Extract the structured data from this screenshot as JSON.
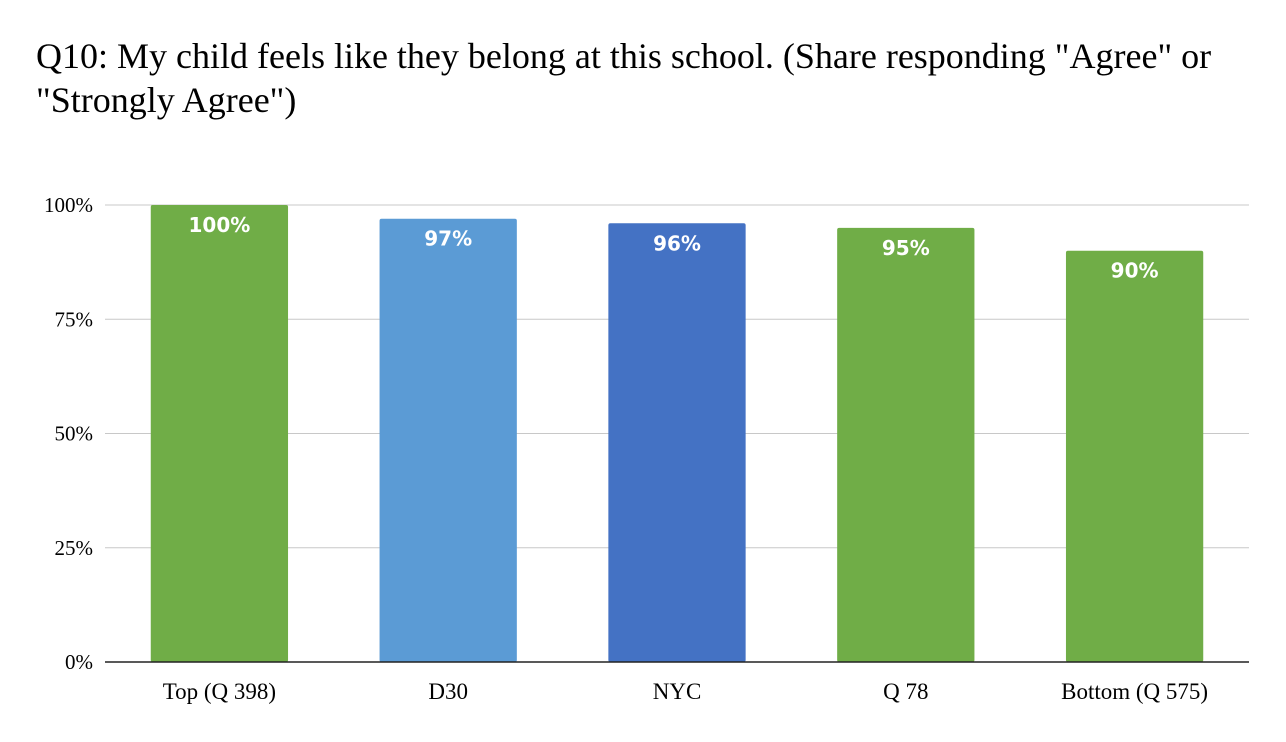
{
  "chart_data": {
    "type": "bar",
    "title": "Q10: My child feels like they belong at this school. (Share responding \"Agree\" or \"Strongly Agree\")",
    "categories": [
      "Top (Q 398)",
      "D30",
      "NYC",
      "Q 78",
      "Bottom (Q 575)"
    ],
    "values": [
      100,
      97,
      96,
      95,
      90
    ],
    "data_labels": [
      "100%",
      "97%",
      "96%",
      "95%",
      "90%"
    ],
    "bar_colors": [
      "#70ad47",
      "#5b9bd5",
      "#4472c4",
      "#70ad47",
      "#70ad47"
    ],
    "ylim": [
      0,
      100
    ],
    "yticks": [
      0,
      25,
      50,
      75,
      100
    ],
    "ytick_labels": [
      "0%",
      "25%",
      "50%",
      "75%",
      "100%"
    ],
    "xlabel": "",
    "ylabel": "",
    "grid": true,
    "legend": "none"
  }
}
